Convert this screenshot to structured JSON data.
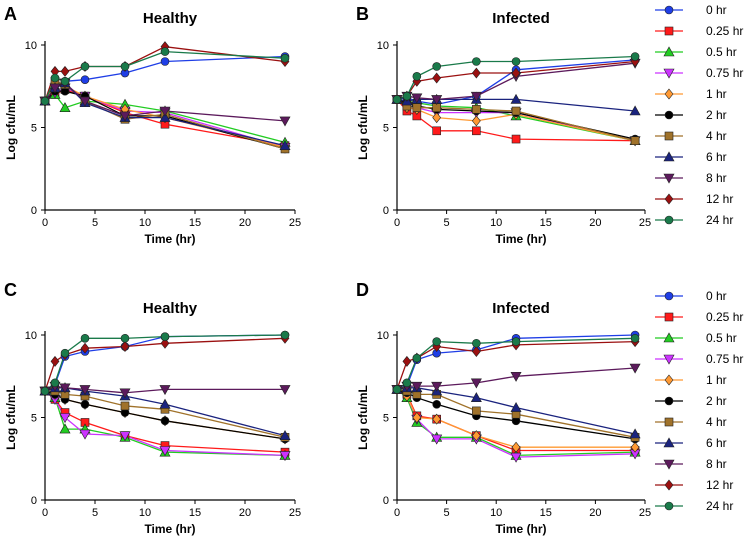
{
  "legend": {
    "entries": [
      {
        "label": "0 hr",
        "color": "#1f3ee6",
        "marker": "circle"
      },
      {
        "label": "0.25 hr",
        "color": "#ff1a1a",
        "marker": "square"
      },
      {
        "label": "0.5 hr",
        "color": "#22cc22",
        "marker": "triangle"
      },
      {
        "label": "0.75 hr",
        "color": "#cc33ff",
        "marker": "triangle-down"
      },
      {
        "label": "1 hr",
        "color": "#ff9933",
        "marker": "diamond"
      },
      {
        "label": "2 hr",
        "color": "#000000",
        "marker": "circle"
      },
      {
        "label": "4 hr",
        "color": "#a0722a",
        "marker": "square"
      },
      {
        "label": "6 hr",
        "color": "#1a237e",
        "marker": "triangle"
      },
      {
        "label": "8 hr",
        "color": "#5c1a5c",
        "marker": "triangle-down"
      },
      {
        "label": "12 hr",
        "color": "#9b1010",
        "marker": "diamond"
      },
      {
        "label": "24 hr",
        "color": "#1a7a4a",
        "marker": "circle"
      }
    ]
  },
  "chart_data": [
    {
      "panel": "A",
      "type": "line",
      "title": "Healthy",
      "xlabel": "Time (hr)",
      "ylabel": "Log cfu/mL",
      "xlim": [
        0,
        25
      ],
      "ylim": [
        0,
        10
      ],
      "xticks": [
        0,
        5,
        10,
        15,
        20,
        25
      ],
      "yticks": [
        0,
        5,
        10
      ],
      "x": [
        0,
        1,
        2,
        4,
        8,
        12,
        24
      ],
      "series": [
        {
          "name": "0 hr",
          "values": [
            6.6,
            7.3,
            7.8,
            7.9,
            8.3,
            9.0,
            9.3
          ]
        },
        {
          "name": "0.25 hr",
          "values": [
            6.6,
            7.0,
            7.3,
            6.9,
            5.9,
            5.2,
            3.9
          ]
        },
        {
          "name": "0.5 hr",
          "values": [
            6.6,
            7.0,
            6.2,
            6.6,
            6.4,
            6.0,
            4.1
          ]
        },
        {
          "name": "0.75 hr",
          "values": [
            6.6,
            7.1,
            7.4,
            6.9,
            6.0,
            5.9,
            3.8
          ]
        },
        {
          "name": "1 hr",
          "values": [
            6.6,
            7.6,
            7.5,
            6.9,
            6.1,
            5.6,
            3.8
          ]
        },
        {
          "name": "2 hr",
          "values": [
            6.6,
            7.2,
            7.2,
            6.9,
            5.7,
            5.7,
            3.7
          ]
        },
        {
          "name": "4 hr",
          "values": [
            6.6,
            7.8,
            7.6,
            6.6,
            5.5,
            5.8,
            3.7
          ]
        },
        {
          "name": "6 hr",
          "values": [
            6.6,
            7.4,
            7.7,
            6.5,
            5.6,
            5.6,
            3.9
          ]
        },
        {
          "name": "8 hr",
          "values": [
            6.6,
            7.4,
            7.7,
            6.6,
            5.7,
            6.0,
            5.4
          ]
        },
        {
          "name": "12 hr",
          "values": [
            6.6,
            8.4,
            8.4,
            8.7,
            8.7,
            9.9,
            9.0
          ]
        },
        {
          "name": "24 hr",
          "values": [
            6.6,
            8.0,
            7.8,
            8.7,
            8.7,
            9.6,
            9.2
          ]
        }
      ]
    },
    {
      "panel": "B",
      "type": "line",
      "title": "Infected",
      "xlabel": "Time (hr)",
      "ylabel": "Log cfu/mL",
      "xlim": [
        0,
        25
      ],
      "ylim": [
        0,
        10
      ],
      "xticks": [
        0,
        5,
        10,
        15,
        20,
        25
      ],
      "yticks": [
        0,
        5,
        10
      ],
      "x": [
        0,
        1,
        2,
        4,
        8,
        12,
        24
      ],
      "series": [
        {
          "name": "0 hr",
          "values": [
            6.7,
            6.8,
            6.6,
            6.4,
            6.9,
            8.5,
            9.1
          ]
        },
        {
          "name": "0.25 hr",
          "values": [
            6.7,
            6.0,
            5.7,
            4.8,
            4.8,
            4.3,
            4.2
          ]
        },
        {
          "name": "0.5 hr",
          "values": [
            6.7,
            6.6,
            6.5,
            6.3,
            6.2,
            5.7,
            4.2
          ]
        },
        {
          "name": "0.75 hr",
          "values": [
            6.7,
            6.3,
            6.2,
            5.9,
            5.9,
            5.9,
            4.2
          ]
        },
        {
          "name": "1 hr",
          "values": [
            6.7,
            6.2,
            6.1,
            5.6,
            5.4,
            5.8,
            4.2
          ]
        },
        {
          "name": "2 hr",
          "values": [
            6.7,
            6.5,
            6.3,
            6.1,
            6.0,
            5.9,
            4.3
          ]
        },
        {
          "name": "4 hr",
          "values": [
            6.7,
            6.3,
            6.2,
            6.2,
            6.1,
            6.0,
            4.2
          ]
        },
        {
          "name": "6 hr",
          "values": [
            6.7,
            6.6,
            6.7,
            6.7,
            6.7,
            6.7,
            6.0
          ]
        },
        {
          "name": "8 hr",
          "values": [
            6.7,
            6.9,
            6.8,
            6.7,
            6.9,
            8.1,
            8.9
          ]
        },
        {
          "name": "12 hr",
          "values": [
            6.7,
            6.9,
            7.8,
            8.0,
            8.3,
            8.3,
            9.0
          ]
        },
        {
          "name": "24 hr",
          "values": [
            6.7,
            6.9,
            8.1,
            8.7,
            9.0,
            9.0,
            9.3
          ]
        }
      ]
    },
    {
      "panel": "C",
      "type": "line",
      "title": "Healthy",
      "xlabel": "Time (hr)",
      "ylabel": "Log cfu/mL",
      "xlim": [
        0,
        25
      ],
      "ylim": [
        0,
        10
      ],
      "xticks": [
        0,
        5,
        10,
        15,
        20,
        25
      ],
      "yticks": [
        0,
        5,
        10
      ],
      "x": [
        0,
        1,
        2,
        4,
        8,
        12,
        24
      ],
      "series": [
        {
          "name": "0 hr",
          "values": [
            6.6,
            7.0,
            8.7,
            9.0,
            9.3,
            9.9,
            10.0
          ]
        },
        {
          "name": "0.25 hr",
          "values": [
            6.6,
            6.1,
            5.3,
            4.7,
            3.9,
            3.3,
            2.9
          ]
        },
        {
          "name": "0.5 hr",
          "values": [
            6.6,
            6.2,
            4.3,
            4.3,
            3.8,
            2.9,
            2.7
          ]
        },
        {
          "name": "0.75 hr",
          "values": [
            6.6,
            6.1,
            5.0,
            4.0,
            3.9,
            3.0,
            2.7
          ]
        },
        {
          "name": "1 hr",
          "values": [
            6.6,
            6.4,
            6.1,
            5.8,
            5.3,
            4.8,
            3.7
          ]
        },
        {
          "name": "2 hr",
          "values": [
            6.6,
            6.4,
            6.1,
            5.8,
            5.3,
            4.8,
            3.7
          ]
        },
        {
          "name": "4 hr",
          "values": [
            6.6,
            6.6,
            6.4,
            6.3,
            5.7,
            5.5,
            3.8
          ]
        },
        {
          "name": "6 hr",
          "values": [
            6.6,
            6.8,
            6.8,
            6.6,
            6.3,
            5.8,
            3.9
          ]
        },
        {
          "name": "8 hr",
          "values": [
            6.6,
            6.9,
            6.8,
            6.7,
            6.5,
            6.7,
            6.7
          ]
        },
        {
          "name": "12 hr",
          "values": [
            6.6,
            8.4,
            8.8,
            9.2,
            9.3,
            9.5,
            9.8
          ]
        },
        {
          "name": "24 hr",
          "values": [
            6.6,
            7.1,
            8.9,
            9.8,
            9.8,
            9.9,
            10.0
          ]
        }
      ]
    },
    {
      "panel": "D",
      "type": "line",
      "title": "Infected",
      "xlabel": "Time (hr)",
      "ylabel": "Log cfu/mL",
      "xlim": [
        0,
        25
      ],
      "ylim": [
        0,
        10
      ],
      "xticks": [
        0,
        5,
        10,
        15,
        20,
        25
      ],
      "yticks": [
        0,
        5,
        10
      ],
      "x": [
        0,
        1,
        2,
        4,
        8,
        12,
        24
      ],
      "series": [
        {
          "name": "0 hr",
          "values": [
            6.7,
            6.9,
            8.5,
            8.9,
            9.1,
            9.8,
            10.0
          ]
        },
        {
          "name": "0.25 hr",
          "values": [
            6.7,
            6.4,
            5.1,
            4.9,
            3.9,
            3.0,
            3.0
          ]
        },
        {
          "name": "0.5 hr",
          "values": [
            6.7,
            6.2,
            4.7,
            3.8,
            3.8,
            2.7,
            2.9
          ]
        },
        {
          "name": "0.75 hr",
          "values": [
            6.7,
            6.3,
            4.9,
            3.7,
            3.7,
            2.6,
            2.8
          ]
        },
        {
          "name": "1 hr",
          "values": [
            6.7,
            6.3,
            5.0,
            4.9,
            3.9,
            3.2,
            3.2
          ]
        },
        {
          "name": "2 hr",
          "values": [
            6.7,
            6.5,
            6.2,
            5.8,
            5.1,
            4.8,
            3.7
          ]
        },
        {
          "name": "4 hr",
          "values": [
            6.7,
            6.6,
            6.4,
            6.4,
            5.4,
            5.2,
            3.8
          ]
        },
        {
          "name": "6 hr",
          "values": [
            6.7,
            6.8,
            6.8,
            6.6,
            6.2,
            5.6,
            4.0
          ]
        },
        {
          "name": "8 hr",
          "values": [
            6.7,
            6.9,
            6.9,
            6.9,
            7.1,
            7.5,
            8.0
          ]
        },
        {
          "name": "12 hr",
          "values": [
            6.7,
            8.4,
            8.6,
            9.3,
            9.0,
            9.4,
            9.6
          ]
        },
        {
          "name": "24 hr",
          "values": [
            6.7,
            7.1,
            8.6,
            9.6,
            9.5,
            9.6,
            9.8
          ]
        }
      ]
    }
  ]
}
